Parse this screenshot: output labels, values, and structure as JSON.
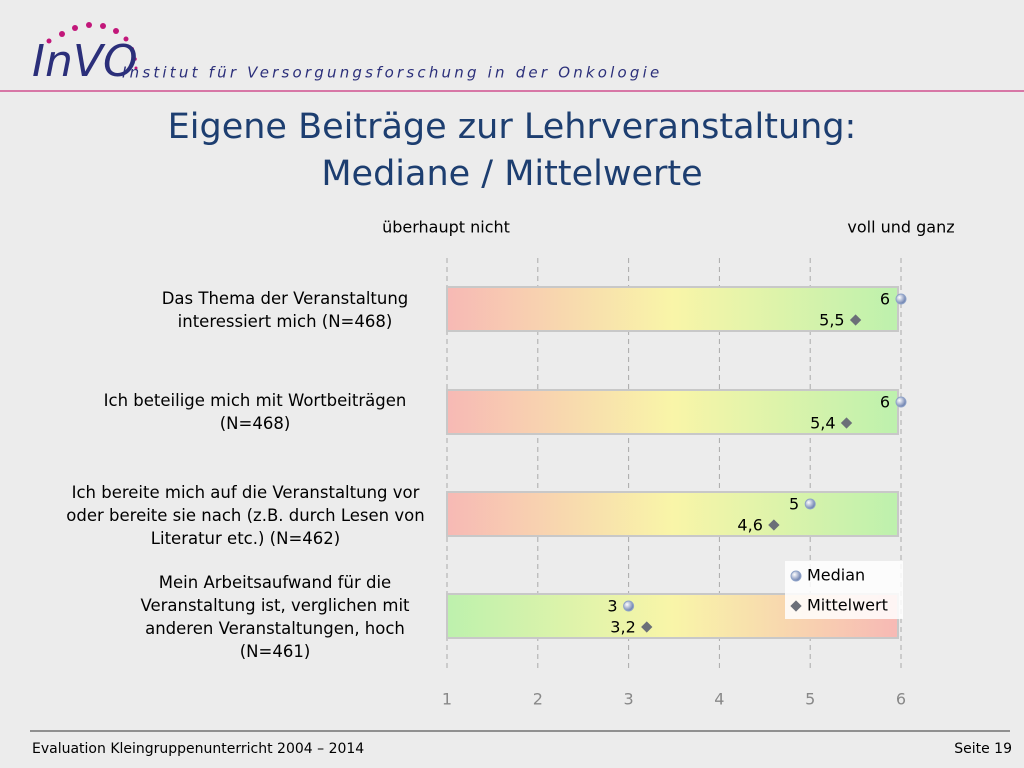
{
  "header": {
    "logo": "InVO",
    "institute": "Institut für Versorgungsforschung in der Onkologie"
  },
  "chart_data": {
    "type": "dot",
    "title": "Eigene Beiträge zur Lehrveranstaltung:",
    "subtitle": "Mediane / Mittelwerte",
    "annotations": [
      "überhaupt nicht",
      "voll und ganz"
    ],
    "categories": [
      "Das Thema der Veranstaltung interessiert mich (N=468)",
      "Ich beteilige mich mit Wortbeiträgen (N=468)",
      "Ich bereite mich auf die Veranstaltung vor oder bereite sie nach (z.B. durch Lesen von Literatur etc.) (N=462)",
      "Mein Arbeitsaufwand für die Veranstaltung ist, verglichen mit anderen Veranstaltungen, hoch (N=461)"
    ],
    "scale_reversed": [
      false,
      false,
      false,
      true
    ],
    "gradient_colors": [
      "#f7b9b5",
      "#f9f5a8",
      "#bdf1ad"
    ],
    "series": [
      {
        "name": "Median",
        "color": "#8fa3c8",
        "values": [
          6,
          6,
          5,
          3
        ]
      },
      {
        "name": "Mittelwert",
        "color": "#6b6f78",
        "values": [
          5.5,
          5.4,
          4.6,
          3.2
        ],
        "value_labels": [
          "5,5",
          "5,4",
          "4,6",
          "3,2"
        ]
      }
    ],
    "xlim": [
      1,
      6
    ],
    "xticks": [
      1,
      2,
      3,
      4,
      5,
      6
    ],
    "grid": true,
    "legend": "right"
  },
  "footer": {
    "left": "Evaluation Kleingruppenunterricht 2004 – 2014",
    "right": "Seite 19"
  }
}
